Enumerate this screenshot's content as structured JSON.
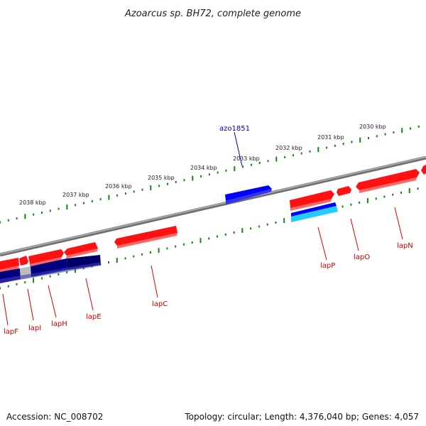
{
  "title": "Azoarcus sp. BH72, complete genome",
  "colors": {
    "forward_gene": "#ff0000",
    "reverse_gene": "#1a1a80",
    "selected_gene": "#0000ee",
    "selected_gene_shadow": "#00ffff",
    "ruler": "#118811",
    "backbone": "#888888",
    "label_line": "#dd0000",
    "selected_label": "#0000cc"
  },
  "scale": {
    "unit": "kbp",
    "ticks": [
      {
        "label": "2038 kbp",
        "value": 2038
      },
      {
        "label": "2037 kbp",
        "value": 2037
      },
      {
        "label": "2036 kbp",
        "value": 2036
      },
      {
        "label": "2035 kbp",
        "value": 2035
      },
      {
        "label": "2034 kbp",
        "value": 2034
      },
      {
        "label": "2033 kbp",
        "value": 2033
      },
      {
        "label": "2032 kbp",
        "value": 2032
      },
      {
        "label": "2031 kbp",
        "value": 2031
      },
      {
        "label": "2030 kbp",
        "value": 2030
      }
    ]
  },
  "genes": [
    {
      "name": "lapF",
      "strand": "forward",
      "color": "#ff0000"
    },
    {
      "name": "lapI",
      "strand": "forward",
      "color": "#ff0000"
    },
    {
      "name": "lapH",
      "strand": "forward",
      "color": "#ff0000"
    },
    {
      "name": "lapE",
      "strand": "forward",
      "color": "#ff0000"
    },
    {
      "name": "lapC",
      "strand": "forward",
      "color": "#ff0000"
    },
    {
      "name": "lapP",
      "strand": "reverse",
      "color": "#0000ee"
    },
    {
      "name": "lapO",
      "strand": "forward",
      "color": "#ff0000"
    },
    {
      "name": "lapN",
      "strand": "forward",
      "color": "#ff0000"
    }
  ],
  "selected_gene": {
    "name": "azo1851",
    "color": "#0000ee"
  },
  "footer": {
    "accession": "Accession: NC_008702",
    "summary": "Topology: circular; Length: 4,376,040 bp; Genes: 4,057"
  }
}
